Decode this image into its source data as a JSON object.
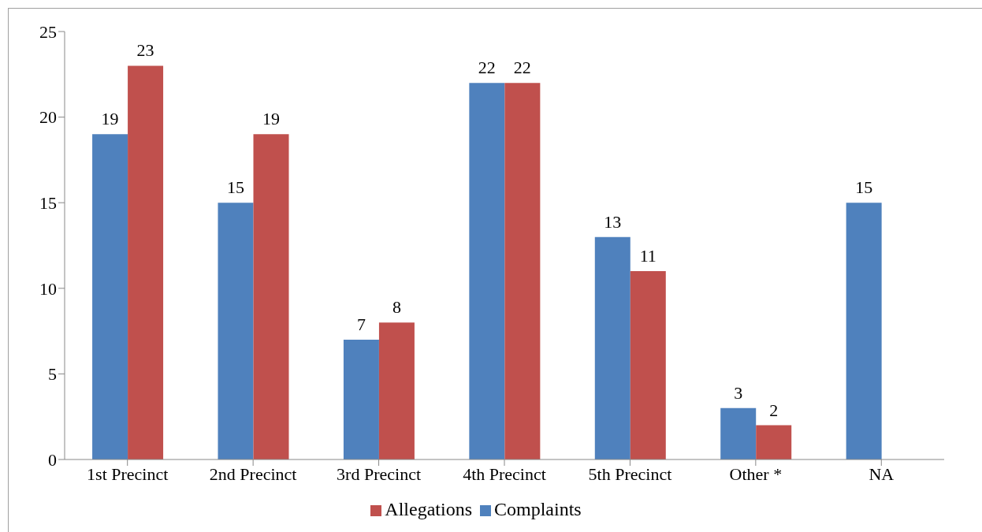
{
  "chart_data": {
    "type": "bar",
    "categories": [
      "1st Precinct",
      "2nd Precinct",
      "3rd Precinct",
      "4th Precinct",
      "5th Precinct",
      "Other *",
      "NA"
    ],
    "series": [
      {
        "name": "Complaints",
        "color": "#4f81bd",
        "values": [
          19,
          15,
          7,
          22,
          13,
          3,
          15
        ]
      },
      {
        "name": "Allegations",
        "color": "#c0504d",
        "values": [
          23,
          19,
          8,
          22,
          11,
          2,
          null
        ]
      }
    ],
    "ylim": [
      0,
      25
    ],
    "yticks": [
      0,
      5,
      10,
      15,
      20,
      25
    ],
    "grid": false,
    "legend": "bottom",
    "data_labels": true
  }
}
